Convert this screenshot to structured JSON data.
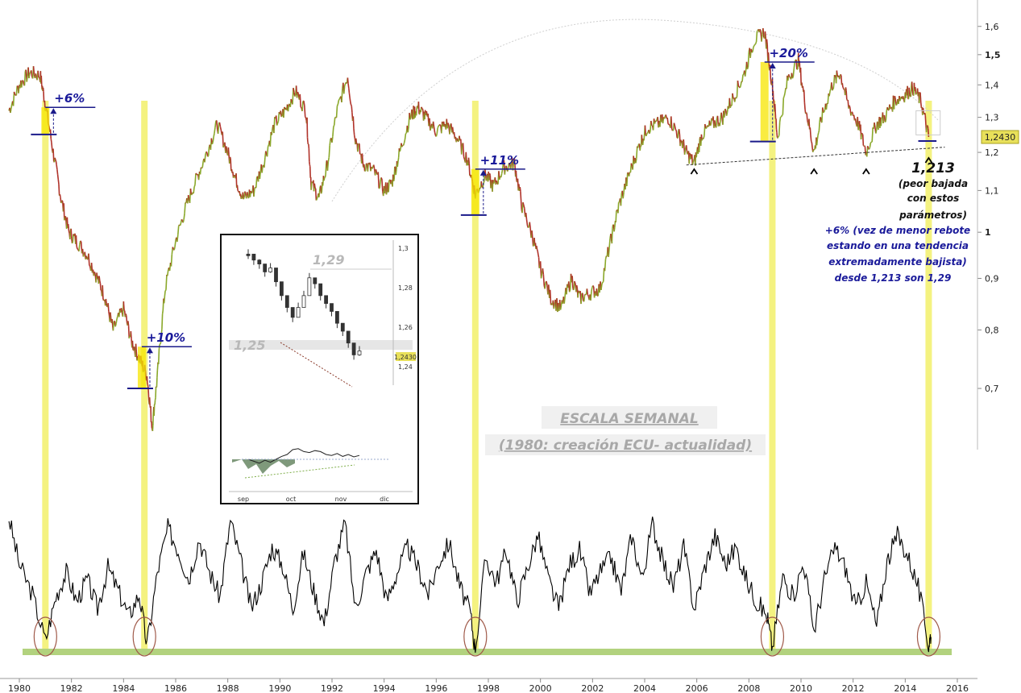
{
  "chart_data": {
    "type": "line",
    "instrument": "EUR/USD",
    "price_panel": {
      "scale": "log",
      "ylim": [
        0.62,
        1.62
      ],
      "y_ticks": [
        {
          "value": 1.6,
          "label": "1,6",
          "bold": false
        },
        {
          "value": 1.5,
          "label": "1,5",
          "bold": true
        },
        {
          "value": 1.4,
          "label": "1,4",
          "bold": false
        },
        {
          "value": 1.3,
          "label": "1,3",
          "bold": false
        },
        {
          "value": 1.2,
          "label": "1,2",
          "bold": false
        },
        {
          "value": 1.1,
          "label": "1,1",
          "bold": false
        },
        {
          "value": 1.0,
          "label": "1",
          "bold": true
        },
        {
          "value": 0.9,
          "label": "0,9",
          "bold": false
        },
        {
          "value": 0.8,
          "label": "0,8",
          "bold": false
        },
        {
          "value": 0.7,
          "label": "0,7",
          "bold": false
        }
      ],
      "last_value": 1.243,
      "last_value_label": "1,2430",
      "series": [
        {
          "x": [
            1979.6,
            1980.0,
            1980.4,
            1980.8,
            1981.0,
            1981.3,
            1981.6,
            1981.9,
            1982.2,
            1982.6,
            1983.0,
            1983.3,
            1983.6,
            1984.0,
            1984.3,
            1984.6,
            1984.9,
            1985.1,
            1985.3,
            1985.6,
            1986.0,
            1986.4,
            1986.8,
            1987.2,
            1987.6,
            1988.0,
            1988.3,
            1988.6,
            1989.0,
            1989.4,
            1989.8,
            1990.2,
            1990.6,
            1991.0,
            1991.2,
            1991.5,
            1991.8,
            1992.2,
            1992.6,
            1992.9,
            1993.2,
            1993.6,
            1994.0,
            1994.3,
            1994.6,
            1995.0,
            1995.3,
            1995.6,
            1996.0,
            1996.4,
            1996.8,
            1997.2,
            1997.5,
            1997.9,
            1998.2,
            1998.6,
            1999.0,
            1999.3,
            1999.7,
            2000.0,
            2000.4,
            2000.8,
            2001.2,
            2001.5,
            2001.9,
            2002.3,
            2002.7,
            2003.0,
            2003.4,
            2003.8,
            2004.1,
            2004.5,
            2004.9,
            2005.3,
            2005.6,
            2005.9,
            2006.2,
            2006.6,
            2007.0,
            2007.4,
            2007.8,
            2008.2,
            2008.6,
            2008.9,
            2009.1,
            2009.5,
            2009.9,
            2010.2,
            2010.5,
            2010.8,
            2011.2,
            2011.5,
            2011.8,
            2012.2,
            2012.5,
            2012.9,
            2013.2,
            2013.6,
            2014.0,
            2014.3,
            2014.6,
            2014.9
          ],
          "y": [
            1.32,
            1.4,
            1.44,
            1.43,
            1.34,
            1.2,
            1.08,
            1.0,
            0.98,
            0.95,
            0.9,
            0.86,
            0.8,
            0.84,
            0.78,
            0.75,
            0.72,
            0.64,
            0.72,
            0.88,
            0.98,
            1.06,
            1.13,
            1.2,
            1.28,
            1.2,
            1.13,
            1.08,
            1.1,
            1.18,
            1.28,
            1.32,
            1.38,
            1.32,
            1.12,
            1.08,
            1.16,
            1.32,
            1.43,
            1.24,
            1.17,
            1.15,
            1.1,
            1.12,
            1.2,
            1.3,
            1.33,
            1.3,
            1.26,
            1.28,
            1.24,
            1.18,
            1.09,
            1.14,
            1.11,
            1.16,
            1.17,
            1.06,
            0.99,
            0.92,
            0.86,
            0.84,
            0.9,
            0.86,
            0.87,
            0.88,
            0.98,
            1.06,
            1.14,
            1.22,
            1.27,
            1.28,
            1.3,
            1.25,
            1.2,
            1.17,
            1.25,
            1.28,
            1.3,
            1.36,
            1.43,
            1.55,
            1.58,
            1.4,
            1.24,
            1.42,
            1.48,
            1.32,
            1.2,
            1.3,
            1.4,
            1.44,
            1.34,
            1.28,
            1.2,
            1.28,
            1.3,
            1.35,
            1.37,
            1.39,
            1.35,
            1.243
          ]
        }
      ],
      "annotations": [
        {
          "label": "+6%",
          "x": 1981.0,
          "base": 1.25,
          "top": 1.33
        },
        {
          "label": "+10%",
          "x": 1984.7,
          "base": 0.7,
          "top": 0.77
        },
        {
          "label": "+11%",
          "x": 1997.5,
          "base": 1.04,
          "top": 1.155
        },
        {
          "label": "+20%",
          "x": 2008.6,
          "base": 1.23,
          "top": 1.475
        }
      ],
      "support_line": {
        "x": [
          2005.6,
          2014.9
        ],
        "y": [
          1.166,
          1.21
        ]
      },
      "support_lows_x": [
        2005.9,
        2010.5,
        2012.5,
        2014.9
      ],
      "low_label": "1,213",
      "low_note": [
        "(peor bajada",
        "con estos",
        "parámetros)"
      ],
      "rebound_note": [
        "+6% (vez de menor rebote",
        "estando en una tendencia",
        "extremadamente bajista)",
        "desde 1,213 son 1,29"
      ],
      "scale_title": "ESCALA SEMANAL",
      "scale_subtitle": "(1980: creación ECU- actualidad)"
    },
    "oscillator_panel": {
      "ylim": [
        0,
        100
      ],
      "values_x": [
        1979.6,
        1980.0,
        1980.5,
        1981.0,
        1981.4,
        1981.8,
        1982.2,
        1982.6,
        1983.0,
        1983.4,
        1983.8,
        1984.2,
        1984.6,
        1984.9,
        1985.3,
        1985.7,
        1986.1,
        1986.5,
        1986.9,
        1987.3,
        1987.7,
        1988.1,
        1988.5,
        1988.9,
        1989.3,
        1989.7,
        1990.1,
        1990.5,
        1990.9,
        1991.3,
        1991.7,
        1992.1,
        1992.5,
        1992.9,
        1993.3,
        1993.7,
        1994.1,
        1994.5,
        1994.9,
        1995.3,
        1995.7,
        1996.1,
        1996.5,
        1996.9,
        1997.3,
        1997.5,
        1997.9,
        1998.3,
        1998.7,
        1999.1,
        1999.5,
        1999.9,
        2000.3,
        2000.7,
        2001.1,
        2001.5,
        2001.9,
        2002.3,
        2002.7,
        2003.1,
        2003.5,
        2003.9,
        2004.3,
        2004.7,
        2005.1,
        2005.5,
        2005.9,
        2006.3,
        2006.7,
        2007.1,
        2007.5,
        2007.9,
        2008.3,
        2008.7,
        2008.9,
        2009.3,
        2009.7,
        2010.1,
        2010.5,
        2010.9,
        2011.3,
        2011.7,
        2012.1,
        2012.5,
        2012.9,
        2013.3,
        2013.7,
        2014.1,
        2014.5,
        2014.9,
        2015.0
      ],
      "values_y": [
        92,
        60,
        40,
        8,
        38,
        55,
        35,
        50,
        30,
        58,
        42,
        25,
        40,
        5,
        55,
        85,
        70,
        50,
        78,
        55,
        38,
        90,
        62,
        30,
        48,
        72,
        60,
        30,
        68,
        42,
        20,
        62,
        88,
        30,
        54,
        70,
        35,
        55,
        72,
        58,
        40,
        62,
        75,
        45,
        28,
        2,
        65,
        48,
        70,
        35,
        58,
        80,
        50,
        30,
        60,
        70,
        40,
        55,
        65,
        42,
        80,
        50,
        88,
        62,
        45,
        72,
        30,
        58,
        80,
        60,
        72,
        50,
        35,
        25,
        3,
        52,
        38,
        62,
        15,
        50,
        72,
        58,
        30,
        48,
        18,
        62,
        80,
        66,
        45,
        5,
        15
      ],
      "baseline_y": 3
    },
    "x_axis": {
      "range": [
        1979.5,
        2016.7
      ],
      "ticks": [
        "1980",
        "1982",
        "1984",
        "1986",
        "1988",
        "1990",
        "1992",
        "1994",
        "1996",
        "1998",
        "2000",
        "2002",
        "2004",
        "2006",
        "2008",
        "2010",
        "2012",
        "2014",
        "2016"
      ]
    },
    "highlight_years": [
      1981.0,
      1984.8,
      1997.5,
      2008.9,
      2014.9
    ],
    "inset": {
      "y_ticks": [
        "1,3",
        "1,28",
        "1,26",
        "1,24"
      ],
      "x_ticks": [
        "sep",
        "oct",
        "nov",
        "dic"
      ],
      "last_label": "1,2430",
      "level_high": "1,29",
      "level_low": "1,25",
      "price_x": [
        0,
        3,
        6,
        9,
        12,
        15,
        18,
        21,
        24,
        27,
        30,
        33,
        36,
        39,
        42,
        45,
        48,
        51,
        54,
        57,
        60
      ],
      "price_y": [
        1.297,
        1.294,
        1.292,
        1.288,
        1.29,
        1.283,
        1.276,
        1.27,
        1.265,
        1.27,
        1.276,
        1.285,
        1.282,
        1.276,
        1.272,
        1.268,
        1.262,
        1.258,
        1.252,
        1.246,
        1.248
      ],
      "osc_y": [
        50,
        46,
        42,
        48,
        44,
        50,
        56,
        60,
        70,
        72,
        66,
        64,
        68,
        66,
        60,
        58,
        62,
        56,
        60,
        55,
        58
      ]
    }
  }
}
